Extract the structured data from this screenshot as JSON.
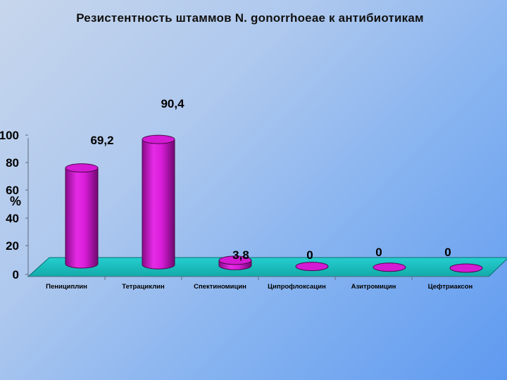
{
  "chart_data": {
    "type": "bar",
    "title": "Резистентность штаммов N. gonorrhoeae к антибиотикам",
    "ylabel": "%",
    "xlabel": "",
    "ylim": [
      0,
      100
    ],
    "yticks": [
      "0",
      "20",
      "40",
      "60",
      "80",
      "100"
    ],
    "categories": [
      "Пенициплин",
      "Тетрациклин",
      "Спектиномицин",
      "Ципрофлоксацин",
      "Азитромицин",
      "Цефтриаксон"
    ],
    "values": [
      69.2,
      90.4,
      3.8,
      0,
      0,
      0
    ],
    "data_labels": [
      "69,2",
      "90,4",
      "3,8",
      "0",
      "0",
      "0"
    ],
    "grid": false,
    "colors": {
      "bar": "#e020e0",
      "floor": "#1fbfbf"
    }
  }
}
